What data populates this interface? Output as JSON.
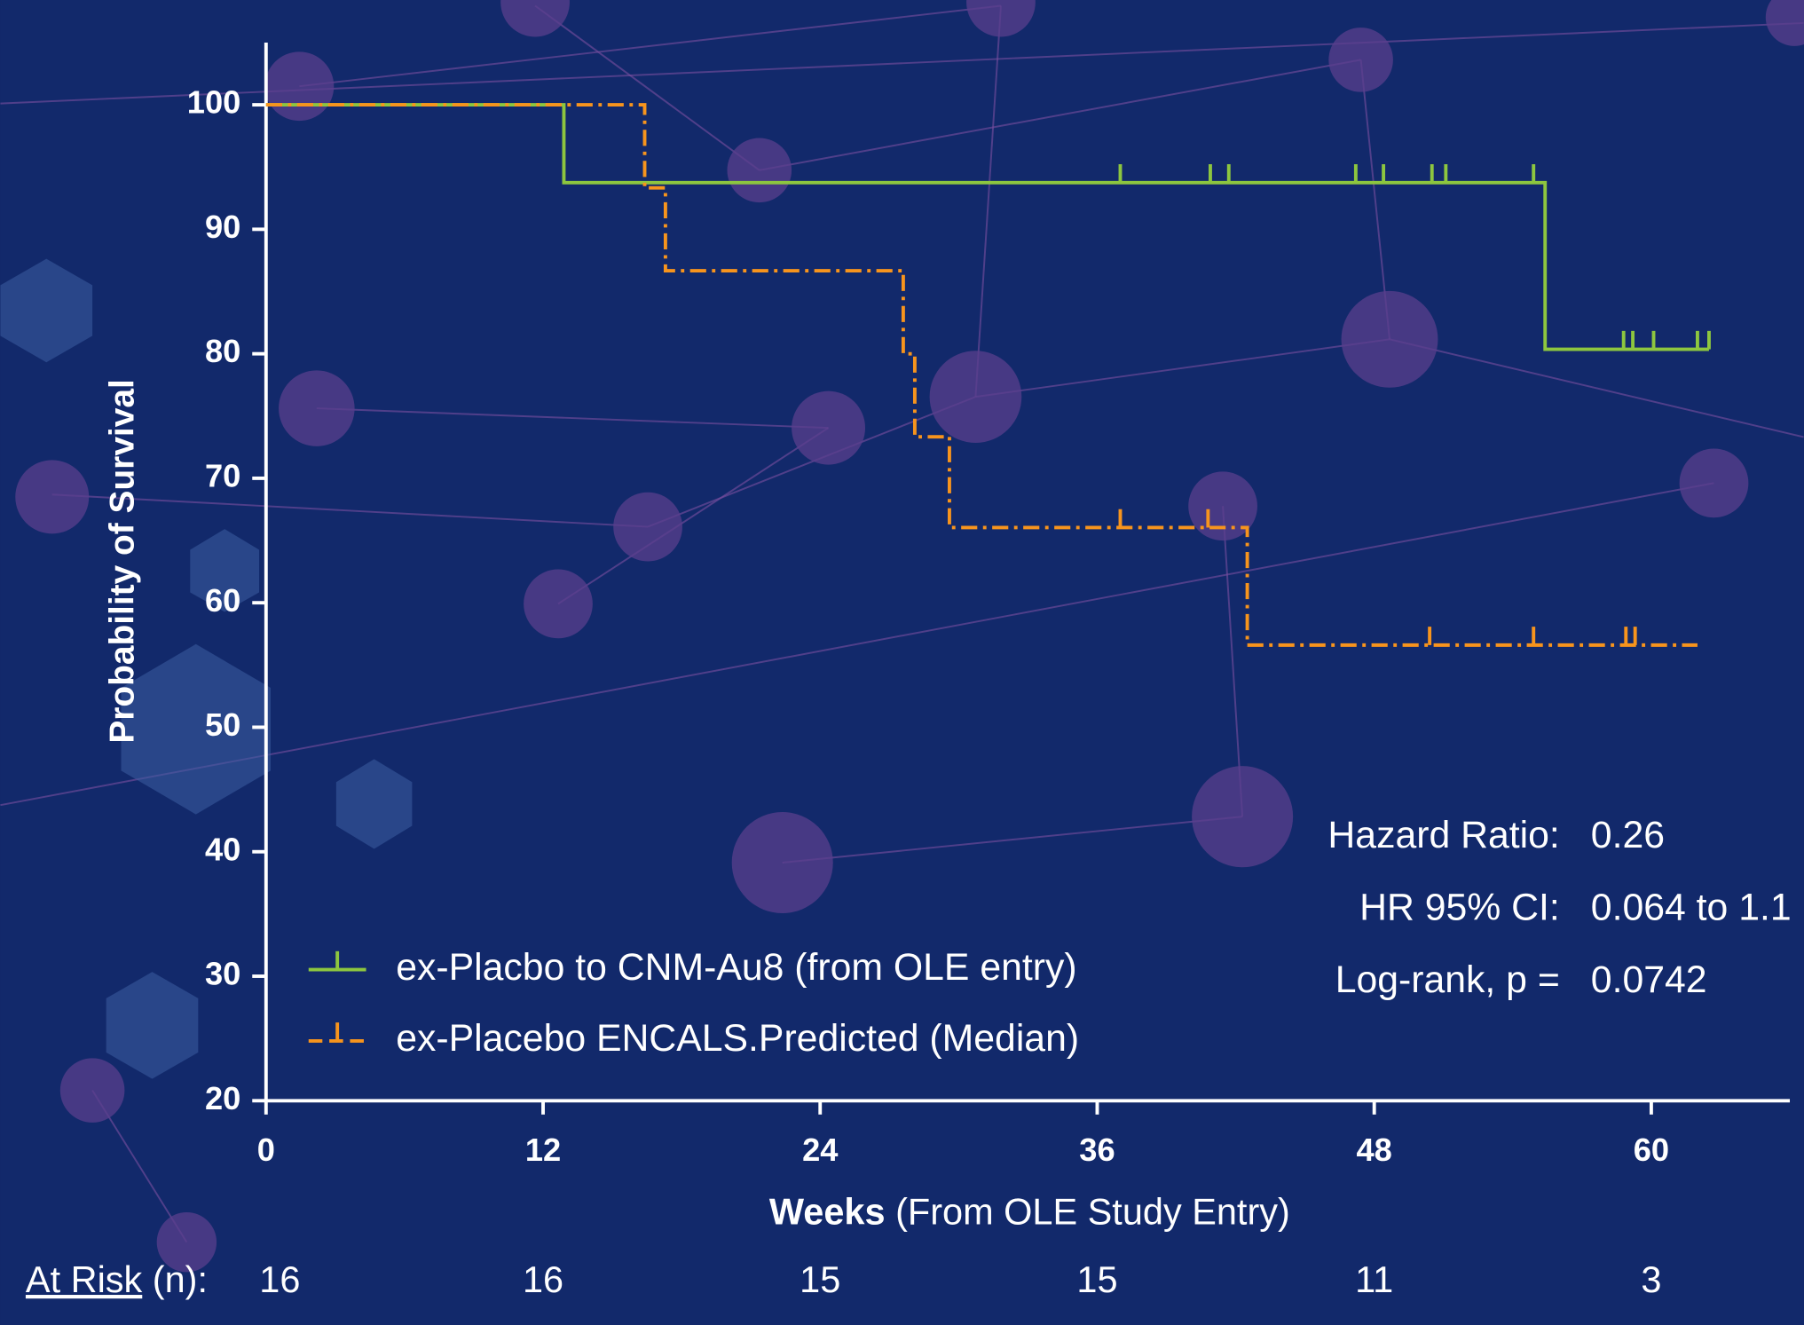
{
  "chart_data": {
    "type": "kaplan-meier",
    "y_label": "Probability of Survival",
    "x_label": "Weeks",
    "x_label_note": "(From OLE Study Entry)",
    "xlim": [
      0,
      66
    ],
    "xticks": [
      0,
      12,
      24,
      36,
      48,
      60
    ],
    "ylim": [
      20,
      105
    ],
    "yticks": [
      20,
      30,
      40,
      50,
      60,
      70,
      80,
      90,
      100
    ],
    "legend": "lower left",
    "series": [
      {
        "name": "ex-Placbo to CNM-Au8 (from OLE entry)",
        "color": "#8dc63f",
        "dashed": false,
        "x": [
          0,
          12.9,
          55.4,
          62.5
        ],
        "values": [
          100,
          93.75,
          80.36,
          80.36
        ],
        "censor_x": [
          37.0,
          40.9,
          41.7,
          47.2,
          48.4,
          50.5,
          51.1,
          54.9,
          58.8,
          59.2,
          60.1,
          62.0,
          62.5
        ],
        "censor_values": [
          93.75,
          93.75,
          93.75,
          93.75,
          93.75,
          93.75,
          93.75,
          93.75,
          80.36,
          80.36,
          80.36,
          80.36,
          80.36
        ]
      },
      {
        "name": "ex-Placebo ENCALS.Predicted (Median)",
        "color": "#f7941d",
        "dashed": true,
        "x": [
          0,
          16.4,
          17.3,
          27.6,
          28.1,
          29.6,
          42.5,
          62.0
        ],
        "values": [
          100,
          93.33,
          86.67,
          80,
          73.33,
          66.04,
          56.6,
          56.6
        ],
        "censor_x": [
          37.0,
          40.8,
          50.4,
          54.9,
          58.9,
          59.3
        ],
        "censor_values": [
          66.04,
          66.04,
          56.6,
          56.6,
          56.6,
          56.6
        ]
      }
    ],
    "annotations": [
      {
        "label": "Hazard Ratio:",
        "value": 0.26
      },
      {
        "label": "HR 95% CI:",
        "value": "0.064 to 1.1"
      },
      {
        "label": "Log-rank, p =",
        "value": 0.0742
      }
    ],
    "at_risk": {
      "label": "At Risk",
      "label_suffix": "(n):",
      "values": [
        16,
        16,
        15,
        15,
        11,
        3
      ]
    }
  }
}
